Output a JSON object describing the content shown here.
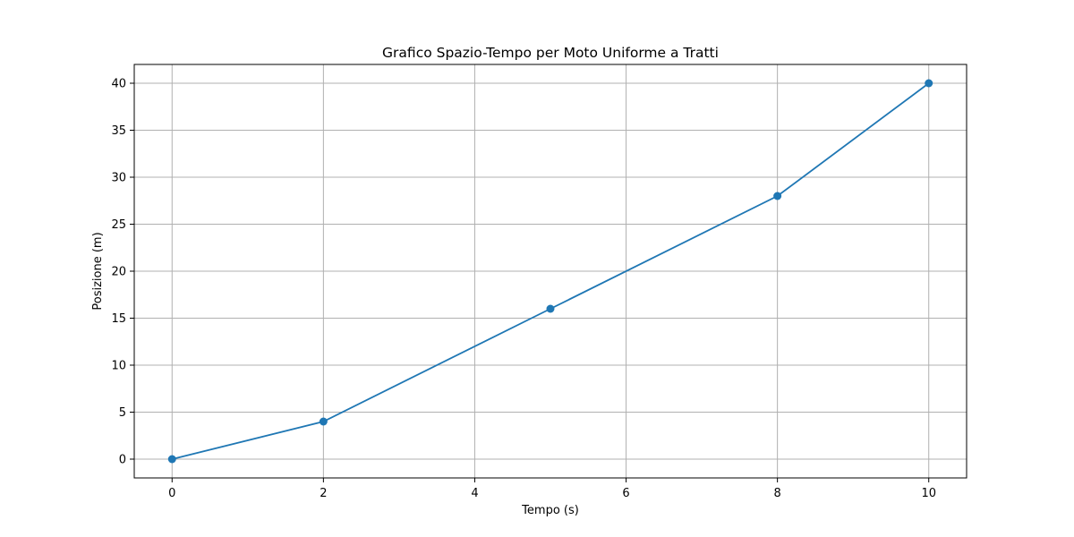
{
  "chart_data": {
    "type": "line",
    "title": "Grafico Spazio-Tempo per Moto Uniforme a Tratti",
    "xlabel": "Tempo (s)",
    "ylabel": "Posizione (m)",
    "xlim": [
      -0.5,
      10.5
    ],
    "ylim": [
      -2,
      42
    ],
    "xticks": [
      0,
      2,
      4,
      6,
      8,
      10
    ],
    "yticks": [
      0,
      5,
      10,
      15,
      20,
      25,
      30,
      35,
      40
    ],
    "grid": true,
    "series": [
      {
        "x": [
          0,
          2,
          5,
          8,
          10
        ],
        "y": [
          0,
          4,
          16,
          28,
          40
        ],
        "color": "#1f77b4",
        "marker": "circle"
      }
    ]
  }
}
